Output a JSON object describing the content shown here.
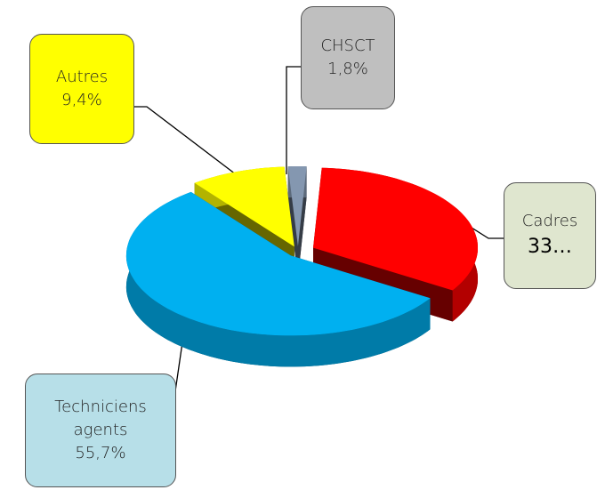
{
  "chart_data": {
    "type": "pie",
    "categories": [
      "Cadres",
      "Techniciens agents",
      "Autres",
      "CHSCT"
    ],
    "values": [
      33.1,
      55.7,
      9.4,
      1.8
    ],
    "value_labels": [
      "33…",
      "55,7%",
      "9,4%",
      "1,8%"
    ],
    "colors": [
      "#ff0000",
      "#00b0f0",
      "#ffff00",
      "#8497b0"
    ]
  }
}
